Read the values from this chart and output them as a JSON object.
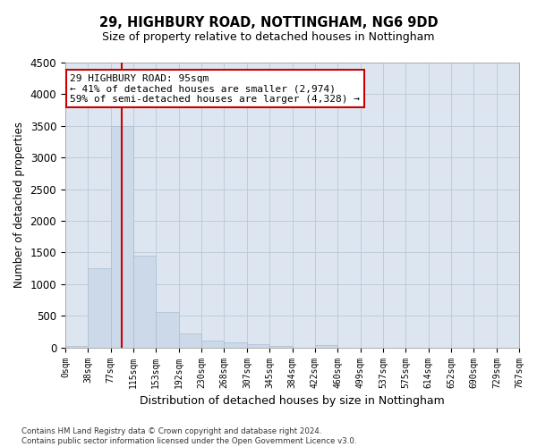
{
  "title": "29, HIGHBURY ROAD, NOTTINGHAM, NG6 9DD",
  "subtitle": "Size of property relative to detached houses in Nottingham",
  "xlabel": "Distribution of detached houses by size in Nottingham",
  "ylabel": "Number of detached properties",
  "bar_color": "#ccd9e8",
  "bar_edge_color": "#aabdd0",
  "grid_color": "#b8c8d8",
  "background_color": "#dde6f0",
  "vline_color": "#cc0000",
  "vline_x": 95,
  "annotation_text": "29 HIGHBURY ROAD: 95sqm\n← 41% of detached houses are smaller (2,974)\n59% of semi-detached houses are larger (4,328) →",
  "annotation_box_color": "#ffffff",
  "annotation_border_color": "#cc0000",
  "footnote": "Contains HM Land Registry data © Crown copyright and database right 2024.\nContains public sector information licensed under the Open Government Licence v3.0.",
  "bin_edges": [
    0,
    38,
    77,
    115,
    153,
    192,
    230,
    268,
    307,
    345,
    384,
    422,
    460,
    499,
    537,
    575,
    614,
    652,
    690,
    729,
    767
  ],
  "bin_labels": [
    "0sqm",
    "38sqm",
    "77sqm",
    "115sqm",
    "153sqm",
    "192sqm",
    "230sqm",
    "268sqm",
    "307sqm",
    "345sqm",
    "384sqm",
    "422sqm",
    "460sqm",
    "499sqm",
    "537sqm",
    "575sqm",
    "614sqm",
    "652sqm",
    "690sqm",
    "729sqm",
    "767sqm"
  ],
  "bar_heights": [
    25,
    1250,
    3500,
    1450,
    560,
    220,
    110,
    75,
    50,
    25,
    0,
    35,
    0,
    0,
    0,
    0,
    0,
    0,
    0,
    0
  ],
  "ylim": [
    0,
    4500
  ],
  "yticks": [
    0,
    500,
    1000,
    1500,
    2000,
    2500,
    3000,
    3500,
    4000,
    4500
  ]
}
